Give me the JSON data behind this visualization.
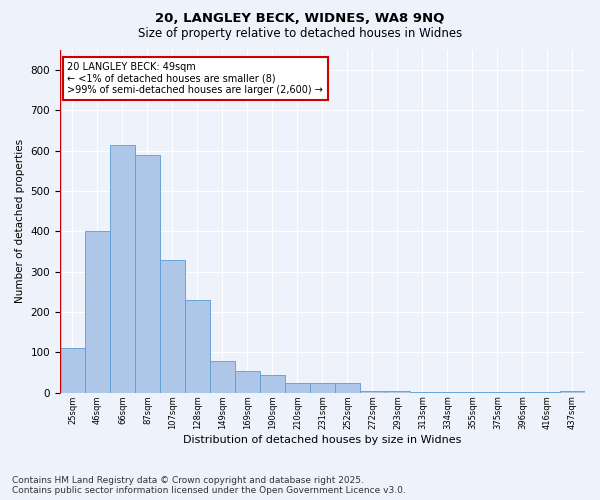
{
  "title_line1": "20, LANGLEY BECK, WIDNES, WA8 9NQ",
  "title_line2": "Size of property relative to detached houses in Widnes",
  "xlabel": "Distribution of detached houses by size in Widnes",
  "ylabel": "Number of detached properties",
  "bar_color": "#aec6e8",
  "bar_edge_color": "#5b9bd5",
  "annotation_box_color": "#cc0000",
  "annotation_text": "20 LANGLEY BECK: 49sqm\n← <1% of detached houses are smaller (8)\n>99% of semi-detached houses are larger (2,600) →",
  "annotation_fontsize": 7,
  "background_color": "#eef2fb",
  "plot_bg_color": "#eef2fb",
  "categories": [
    "25sqm",
    "46sqm",
    "66sqm",
    "87sqm",
    "107sqm",
    "128sqm",
    "149sqm",
    "169sqm",
    "190sqm",
    "210sqm",
    "231sqm",
    "252sqm",
    "272sqm",
    "293sqm",
    "313sqm",
    "334sqm",
    "355sqm",
    "375sqm",
    "396sqm",
    "416sqm",
    "437sqm"
  ],
  "values": [
    110,
    400,
    615,
    590,
    330,
    230,
    80,
    55,
    45,
    25,
    25,
    25,
    5,
    5,
    3,
    3,
    3,
    3,
    3,
    3,
    5
  ],
  "ylim": [
    0,
    850
  ],
  "yticks": [
    0,
    100,
    200,
    300,
    400,
    500,
    600,
    700,
    800
  ],
  "grid_color": "#ffffff",
  "footer_line1": "Contains HM Land Registry data © Crown copyright and database right 2025.",
  "footer_line2": "Contains public sector information licensed under the Open Government Licence v3.0.",
  "footer_fontsize": 6.5,
  "title_fontsize": 9.5,
  "subtitle_fontsize": 8.5,
  "ylabel_fontsize": 7.5,
  "xlabel_fontsize": 8,
  "ytick_fontsize": 7.5,
  "xtick_fontsize": 6
}
